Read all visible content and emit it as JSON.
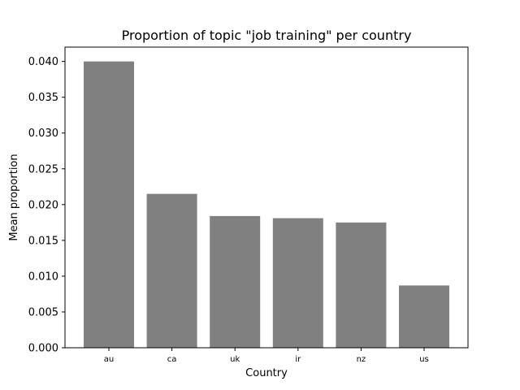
{
  "chart_data": {
    "type": "bar",
    "title": "Proportion of topic \"job training\" per country",
    "xlabel": "Country",
    "ylabel": "Mean proportion",
    "categories": [
      "au",
      "ca",
      "uk",
      "ir",
      "nz",
      "us"
    ],
    "values": [
      0.04,
      0.0215,
      0.0184,
      0.0181,
      0.0175,
      0.0087
    ],
    "ylim": [
      0,
      0.042
    ],
    "yticks": [
      "0.000",
      "0.005",
      "0.010",
      "0.015",
      "0.020",
      "0.025",
      "0.030",
      "0.035",
      "0.040"
    ],
    "bar_color": "#808080",
    "grid": false
  }
}
